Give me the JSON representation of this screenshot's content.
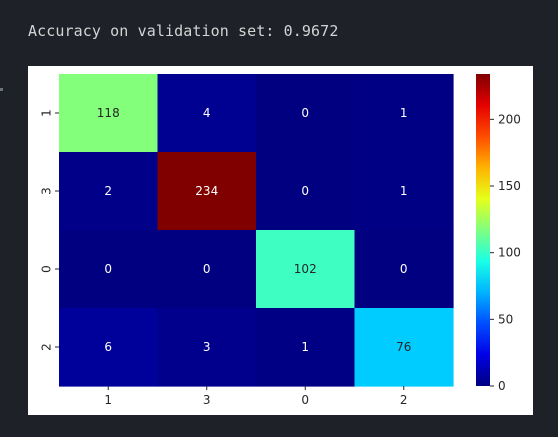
{
  "output": {
    "text": "Accuracy on validation set: 0.9672"
  },
  "chart_data": {
    "type": "heatmap",
    "row_labels": [
      "1",
      "3",
      "0",
      "2"
    ],
    "col_labels": [
      "1",
      "3",
      "0",
      "2"
    ],
    "values": [
      [
        118,
        4,
        0,
        1
      ],
      [
        2,
        234,
        0,
        1
      ],
      [
        0,
        0,
        102,
        0
      ],
      [
        6,
        3,
        1,
        76
      ]
    ],
    "colorbar": {
      "min": 0,
      "max": 234,
      "ticks": [
        0,
        50,
        100,
        150,
        200
      ],
      "colormap": "jet"
    },
    "title": "",
    "xlabel": "",
    "ylabel": ""
  }
}
